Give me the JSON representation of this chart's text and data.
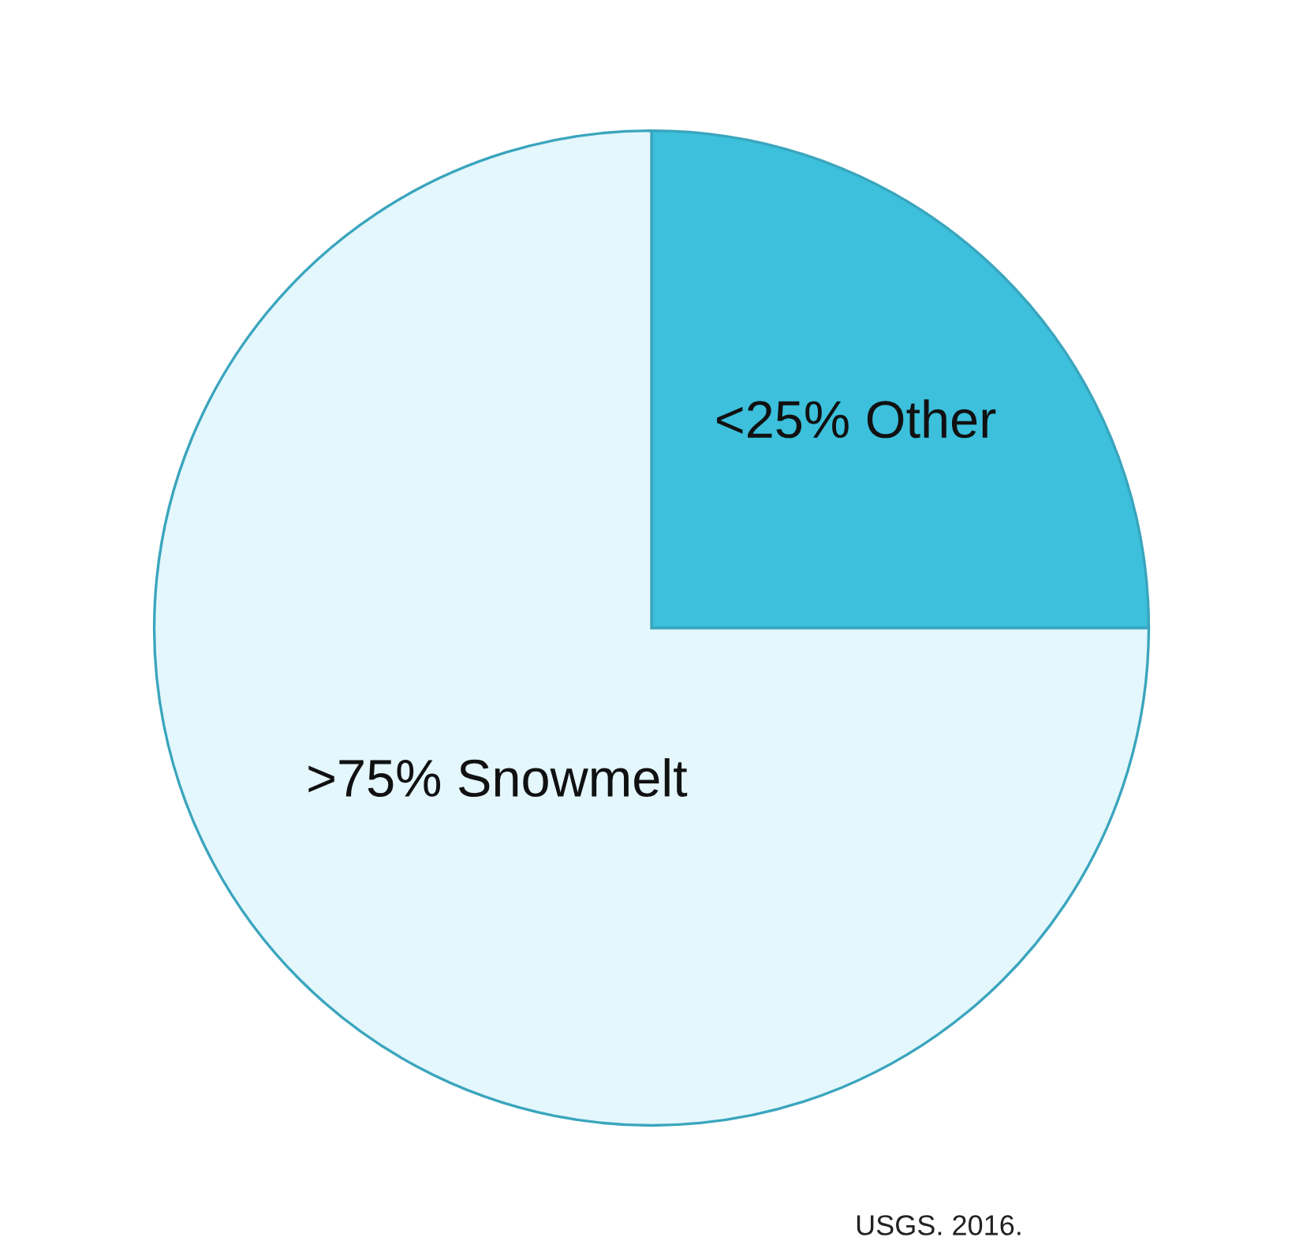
{
  "chart_data": {
    "type": "pie",
    "categories": [
      "<25% Other",
      ">75% Snowmelt"
    ],
    "values": [
      25,
      75
    ],
    "colors": [
      "#3cc0dc",
      "#e3f7fd"
    ],
    "annotations": [
      "USGS. 2016."
    ]
  }
}
